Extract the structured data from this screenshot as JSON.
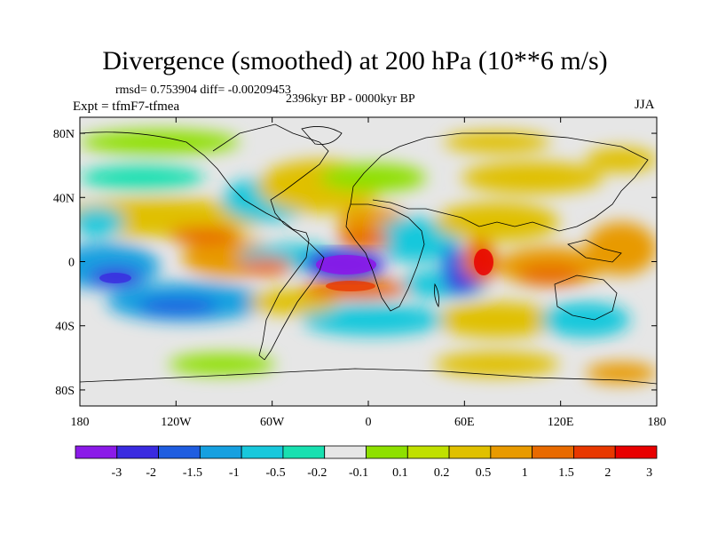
{
  "title": "Divergence (smoothed) at 200 hPa (10**6 m/s)",
  "stats": "rmsd= 0.753904 diff= -0.00209453",
  "experiment": "Expt = tfmF7-tfmea",
  "period": "2396kyr BP - 0000kyr BP",
  "season": "JJA",
  "axes": {
    "lat_labels": [
      "80N",
      "40N",
      "0",
      "40S",
      "80S"
    ],
    "lat_values": [
      80,
      40,
      0,
      -40,
      -80
    ],
    "lon_labels": [
      "180",
      "120W",
      "60W",
      "0",
      "60E",
      "120E",
      "180"
    ],
    "lon_values": [
      -180,
      -120,
      -60,
      0,
      60,
      120,
      180
    ],
    "lat_range": [
      -90,
      90
    ],
    "lon_range": [
      -180,
      180
    ]
  },
  "colorbar": {
    "colors": [
      "#8b1ae8",
      "#3a2be0",
      "#1f5de0",
      "#16a0e0",
      "#18c8dc",
      "#18e0b0",
      "#e6e6e6",
      "#8ee000",
      "#c0e000",
      "#e0c000",
      "#e89a00",
      "#e86a00",
      "#e83800",
      "#e80000"
    ],
    "labels": [
      "-3",
      "-2",
      "-1.5",
      "-1",
      "-0.5",
      "-0.2",
      "-0.1",
      "0.1",
      "0.2",
      "0.5",
      "1",
      "1.5",
      "2",
      "3"
    ]
  },
  "chart_data": {
    "type": "heatmap",
    "title": "Divergence (smoothed) at 200 hPa (10**6 m/s)",
    "units": "10**6 m/s",
    "levels": [
      -3,
      -2,
      -1.5,
      -1,
      -0.5,
      -0.2,
      -0.1,
      0.1,
      0.2,
      0.5,
      1,
      1.5,
      2,
      3
    ],
    "features": [
      {
        "region": "equatorial Atlantic",
        "lon": -18,
        "lat": 0,
        "value": -3.2
      },
      {
        "region": "tropical Indian Ocean",
        "lon": 58,
        "lat": 0,
        "value": 2.8
      },
      {
        "region": "tropical Atlantic south",
        "lon": -20,
        "lat": -14,
        "value": 2.2
      },
      {
        "region": "East Africa",
        "lon": 40,
        "lat": 10,
        "value": 1.4
      },
      {
        "region": "central Pacific south",
        "lon": -160,
        "lat": -12,
        "value": -2.4
      },
      {
        "region": "South Pacific",
        "lon": -128,
        "lat": -26,
        "value": -1.8
      },
      {
        "region": "eastern Pacific",
        "lon": -108,
        "lat": 10,
        "value": 1.5
      },
      {
        "region": "western Pacific",
        "lon": 150,
        "lat": 2,
        "value": 1.6
      },
      {
        "region": "Indian Ocean south",
        "lon": 75,
        "lat": -18,
        "value": 1.2
      },
      {
        "region": "southern Indian Ocean",
        "lon": 62,
        "lat": -12,
        "value": -1.4
      },
      {
        "region": "North Atlantic",
        "lon": -30,
        "lat": 30,
        "value": 0.9
      },
      {
        "region": "Siberia",
        "lon": 95,
        "lat": 55,
        "value": 0.8
      },
      {
        "region": "Southern Ocean Pacific",
        "lon": -120,
        "lat": -58,
        "value": 0.6
      },
      {
        "region": "Southern Ocean Indian",
        "lon": 100,
        "lat": -55,
        "value": 0.7
      },
      {
        "region": "North Pacific",
        "lon": 175,
        "lat": 45,
        "value": -0.6
      }
    ]
  }
}
